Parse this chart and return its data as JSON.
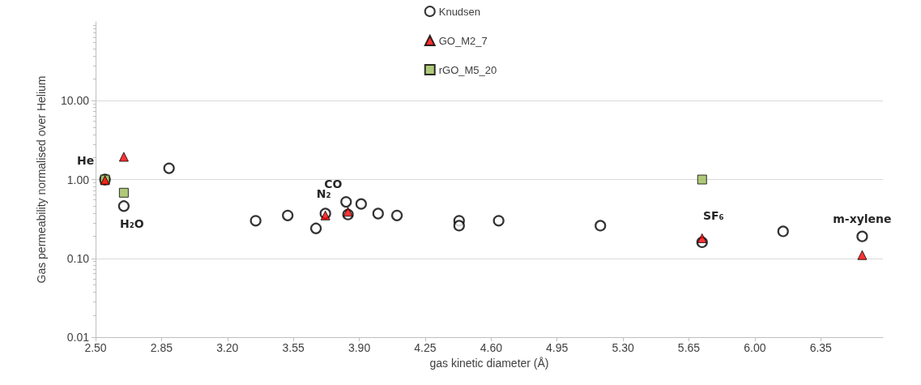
{
  "chart_data": {
    "type": "scatter",
    "xlabel": "gas kinetic diameter (Å)",
    "ylabel": "Gas permeability normalised over Helium",
    "series": [
      {
        "name": "Knudsen",
        "color": "#000000",
        "marker": "circle",
        "x": [
          2.55,
          2.65,
          2.89,
          3.35,
          3.52,
          3.67,
          3.72,
          3.83,
          3.84,
          3.91,
          4.0,
          4.1,
          4.43,
          4.43,
          4.64,
          5.18,
          5.72,
          6.15,
          6.57
        ],
        "values": [
          1.0,
          0.46,
          1.39,
          0.3,
          0.35,
          0.24,
          0.37,
          0.52,
          0.36,
          0.49,
          0.37,
          0.35,
          0.3,
          0.26,
          0.3,
          0.26,
          0.16,
          0.22,
          0.19
        ]
      },
      {
        "name": "GO_M2_7",
        "color": "#ff0000",
        "marker": "triangle",
        "x": [
          2.55,
          2.65,
          3.72,
          3.84,
          5.72,
          6.57
        ],
        "values": [
          0.98,
          1.94,
          0.35,
          0.39,
          0.18,
          0.11
        ]
      },
      {
        "name": "rGO_M5_20",
        "color": "#9bbb59",
        "marker": "square",
        "x": [
          2.55,
          2.65,
          5.72
        ],
        "values": [
          1.0,
          0.68,
          1.0
        ]
      }
    ],
    "xlim": [
      2.5,
      6.68
    ],
    "xticks": [
      {
        "value": 2.5,
        "label": "2.50"
      },
      {
        "value": 2.85,
        "label": "2.85"
      },
      {
        "value": 3.2,
        "label": "3.20"
      },
      {
        "value": 3.55,
        "label": "3.55"
      },
      {
        "value": 3.9,
        "label": "3.90"
      },
      {
        "value": 4.25,
        "label": "4.25"
      },
      {
        "value": 4.6,
        "label": "4.60"
      },
      {
        "value": 4.95,
        "label": "4.95"
      },
      {
        "value": 5.3,
        "label": "5.30"
      },
      {
        "value": 5.65,
        "label": "5.65"
      },
      {
        "value": 6.0,
        "label": "6.00"
      },
      {
        "value": 6.35,
        "label": "6.35"
      }
    ],
    "ylim": [
      0.01,
      100
    ],
    "yticks": [
      {
        "value": 0.01,
        "label": "0.01"
      },
      {
        "value": 0.1,
        "label": "0.10"
      },
      {
        "value": 1,
        "label": "1.00"
      },
      {
        "value": 10,
        "label": "10.00"
      }
    ],
    "log": "y",
    "grid": "y",
    "legend": "top",
    "annotations": [
      {
        "text": "He",
        "x": 2.55,
        "y": 1.0
      },
      {
        "text": "H₂O",
        "x": 2.65,
        "y": 0.46
      },
      {
        "text": "N₂",
        "x": 3.72,
        "y": 0.37
      },
      {
        "text": "CO",
        "x": 3.83,
        "y": 0.52
      },
      {
        "text": "SF₆",
        "x": 5.72,
        "y": 0.18
      },
      {
        "text": "m-xylene",
        "x": 6.57,
        "y": 0.19
      }
    ]
  }
}
